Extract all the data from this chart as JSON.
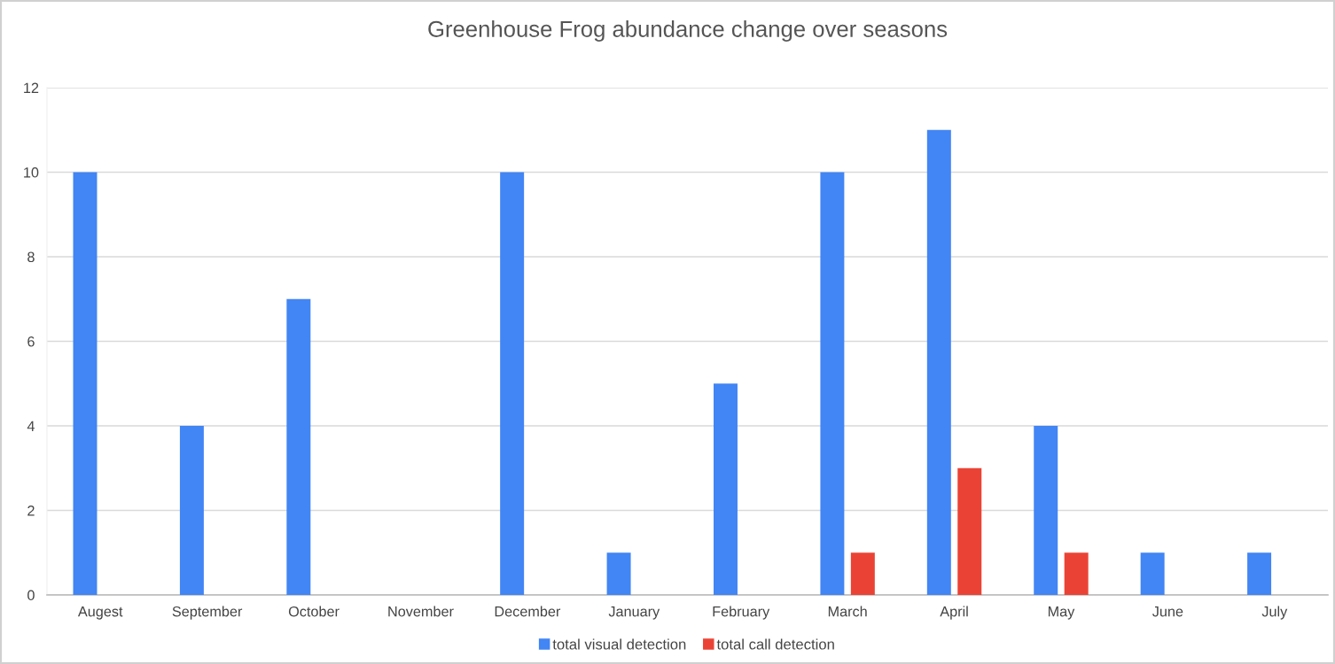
{
  "chart_data": {
    "type": "bar",
    "title": "Greenhouse Frog abundance change over seasons",
    "categories": [
      "Augest",
      "September",
      "October",
      "November",
      "December",
      "January",
      "February",
      "March",
      "April",
      "May",
      "June",
      "July"
    ],
    "series": [
      {
        "name": "total visual detection",
        "color": "#4285f4",
        "values": [
          10,
          4,
          7,
          null,
          10,
          1,
          5,
          10,
          11,
          4,
          1,
          1
        ]
      },
      {
        "name": "total call detection",
        "color": "#ea4335",
        "values": [
          null,
          null,
          null,
          null,
          null,
          null,
          null,
          1,
          3,
          1,
          null,
          null
        ]
      }
    ],
    "ylim": [
      0,
      12
    ],
    "yticks": [
      0,
      2,
      4,
      6,
      8,
      10,
      12
    ],
    "grid": "y",
    "legend": "bottom"
  }
}
